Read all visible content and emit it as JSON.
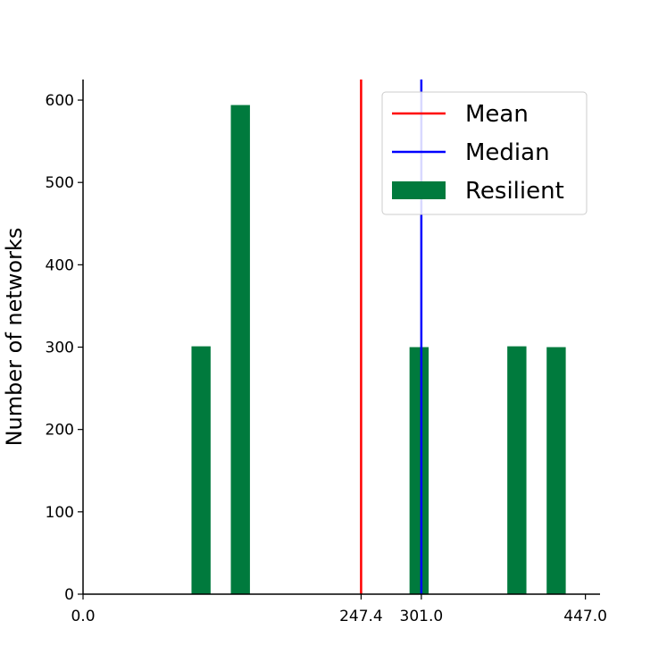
{
  "chart_data": {
    "type": "bar",
    "ylabel": "Number of networks",
    "xlabel": "",
    "xlim": [
      0,
      460
    ],
    "ylim": [
      0,
      625
    ],
    "xticks": [
      0.0,
      247.4,
      301.0,
      447.0
    ],
    "xtick_labels": [
      "0.0",
      "247.4",
      "301.0",
      "447.0"
    ],
    "yticks": [
      0,
      100,
      200,
      300,
      400,
      500,
      600
    ],
    "ytick_labels": [
      "0",
      "100",
      "200",
      "300",
      "400",
      "500",
      "600"
    ],
    "bar_width": 17,
    "series": [
      {
        "name": "Resilient",
        "color": "#007a3d",
        "x": [
          105,
          140,
          299,
          386,
          421
        ],
        "values": [
          301,
          594,
          300,
          301,
          300
        ]
      }
    ],
    "reference_lines": [
      {
        "name": "Mean",
        "x": 247.4,
        "color": "#ff0000"
      },
      {
        "name": "Median",
        "x": 301.0,
        "color": "#0000ff"
      }
    ],
    "legend": {
      "placement": "top-right",
      "entries": [
        {
          "label": "Mean",
          "kind": "line",
          "color": "#ff0000"
        },
        {
          "label": "Median",
          "kind": "line",
          "color": "#0000ff"
        },
        {
          "label": "Resilient",
          "kind": "patch",
          "color": "#007a3d"
        }
      ]
    },
    "spines": {
      "top": false,
      "right": false,
      "left": true,
      "bottom": true
    }
  }
}
